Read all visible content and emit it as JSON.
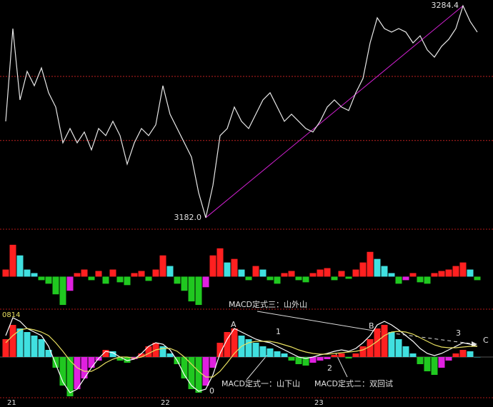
{
  "chart_data": [
    {
      "type": "line",
      "x": [
        0,
        1,
        2,
        3,
        4,
        5,
        6,
        7,
        8,
        9,
        10,
        11,
        12,
        13,
        14,
        15,
        16,
        17,
        18,
        19,
        20,
        21,
        22,
        23,
        24,
        25,
        26,
        27,
        28,
        29,
        30,
        31,
        32,
        33,
        34,
        35,
        36,
        37,
        38,
        39,
        40,
        41,
        42,
        43,
        44,
        45,
        46,
        47,
        48,
        49,
        50,
        51,
        52,
        53,
        54,
        55,
        56,
        57,
        58,
        59,
        60,
        61,
        62,
        63,
        64,
        65,
        66
      ],
      "xlim": [
        -0.8,
        68.2
      ],
      "ylim": [
        3176.8,
        3287.2
      ],
      "series": [
        {
          "color": "#e8e8e8",
          "values": [
            3228.6,
            3273.4,
            3238.9,
            3252.7,
            3245.8,
            3254.4,
            3242.4,
            3235.5,
            3218.2,
            3225.1,
            3218.2,
            3223.4,
            3214.8,
            3225.1,
            3221.7,
            3228.6,
            3221.7,
            3207.9,
            3218.2,
            3225.1,
            3221.7,
            3226.9,
            3245.8,
            3232.0,
            3225.1,
            3218.2,
            3211.3,
            3194.1,
            3182.0,
            3197.6,
            3221.7,
            3225.1,
            3235.5,
            3228.6,
            3225.1,
            3232.0,
            3238.9,
            3242.4,
            3235.5,
            3228.6,
            3232.0,
            3228.6,
            3225.1,
            3223.4,
            3228.6,
            3235.5,
            3238.9,
            3235.5,
            3233.8,
            3242.4,
            3249.3,
            3266.5,
            3278.6,
            3273.4,
            3271.7,
            3273.4,
            3271.7,
            3266.5,
            3269.9,
            3263.1,
            3259.6,
            3264.8,
            3268.2,
            3273.4,
            3284.4,
            3276.9,
            3271.7
          ]
        }
      ],
      "hlines": [
        3250.3,
        3219.3
      ],
      "hline_color": "#c02020",
      "trend_color": "#d020d0",
      "high": 3284.4,
      "low": {
        "value": 3182.0,
        "label": "3182.0"
      }
    },
    {
      "type": "bar",
      "x": [
        0,
        1,
        2,
        3,
        4,
        5,
        6,
        7,
        8,
        9,
        10,
        11,
        12,
        13,
        14,
        15,
        16,
        17,
        18,
        19,
        20,
        21,
        22,
        23,
        24,
        25,
        26,
        27,
        28,
        29,
        30,
        31,
        32,
        33,
        34,
        35,
        36,
        37,
        38,
        39,
        40,
        41,
        42,
        43,
        44,
        45,
        46,
        47,
        48,
        49,
        50,
        51,
        52,
        53,
        54,
        55,
        56,
        57,
        58,
        59,
        60,
        61,
        62,
        63,
        64,
        65,
        66
      ],
      "xlim": [
        -0.8,
        68.2
      ],
      "ylim": [
        -45,
        63
      ],
      "bar_colors": [
        "#ff2020",
        "#40e0e0",
        "#20c820",
        "#e020e0"
      ],
      "series": [
        {
          "values": [
            10,
            45,
            30,
            10,
            5,
            -5,
            -10,
            -25,
            -40,
            -20,
            5,
            10,
            -5,
            8,
            -10,
            10,
            -8,
            -12,
            5,
            8,
            -6,
            10,
            30,
            15,
            -10,
            -20,
            -35,
            -40,
            -15,
            30,
            40,
            20,
            25,
            10,
            -5,
            15,
            10,
            -5,
            -10,
            5,
            8,
            -5,
            -8,
            5,
            10,
            12,
            -5,
            8,
            -3,
            10,
            20,
            35,
            25,
            15,
            5,
            -10,
            -5,
            5,
            -8,
            -10,
            5,
            8,
            10,
            15,
            20,
            10,
            -5
          ]
        }
      ]
    },
    {
      "type": "macd",
      "label": "0814",
      "x": [
        0,
        1,
        2,
        3,
        4,
        5,
        6,
        7,
        8,
        9,
        10,
        11,
        12,
        13,
        14,
        15,
        16,
        17,
        18,
        19,
        20,
        21,
        22,
        23,
        24,
        25,
        26,
        27,
        28,
        29,
        30,
        31,
        32,
        33,
        34,
        35,
        36,
        37,
        38,
        39,
        40,
        41,
        42,
        43,
        44,
        45,
        46,
        47,
        48,
        49,
        50,
        51,
        52,
        53,
        54,
        55,
        56,
        57,
        58,
        59,
        60,
        61,
        62,
        63,
        64,
        65,
        66
      ],
      "xlim": [
        -0.8,
        68.2
      ],
      "xticks": [
        {
          "value": 0,
          "label": "21"
        },
        {
          "value": 21.5,
          "label": "22"
        },
        {
          "value": 43,
          "label": "23"
        }
      ],
      "ylim": [
        -55,
        65
      ],
      "bar_colors": [
        "#ff2020",
        "#40e0e0",
        "#20c820",
        "#e020e0"
      ],
      "series": [
        {
          "values": [
            25,
            45,
            40,
            35,
            30,
            25,
            10,
            -15,
            -40,
            -55,
            -45,
            -30,
            -15,
            -5,
            10,
            8,
            -5,
            -8,
            -3,
            5,
            15,
            20,
            15,
            5,
            -10,
            -30,
            -45,
            -50,
            -40,
            -15,
            20,
            35,
            40,
            30,
            25,
            20,
            15,
            12,
            8,
            5,
            -5,
            -10,
            -12,
            -8,
            -5,
            -3,
            3,
            5,
            -2,
            5,
            15,
            25,
            40,
            45,
            35,
            25,
            15,
            5,
            -10,
            -20,
            -25,
            -15,
            -5,
            5,
            10,
            8,
            0
          ]
        },
        {
          "color": "#ffffff",
          "values": [
            30,
            55,
            50,
            40,
            35,
            30,
            15,
            -10,
            -35,
            -50,
            -45,
            -30,
            -15,
            -2,
            8,
            6,
            0,
            -5,
            -3,
            5,
            15,
            20,
            18,
            10,
            -5,
            -25,
            -40,
            -48,
            -45,
            -25,
            5,
            25,
            40,
            35,
            30,
            25,
            22,
            20,
            15,
            10,
            5,
            0,
            -2,
            0,
            3,
            5,
            8,
            10,
            8,
            12,
            20,
            30,
            45,
            50,
            45,
            38,
            30,
            22,
            12,
            5,
            2,
            5,
            10,
            15,
            20,
            18,
            15
          ]
        },
        {
          "color": "#e8e060",
          "values": [
            20,
            30,
            38,
            40,
            38,
            35,
            30,
            20,
            8,
            -5,
            -15,
            -20,
            -20,
            -15,
            -8,
            -3,
            0,
            0,
            -2,
            0,
            5,
            10,
            12,
            12,
            8,
            0,
            -10,
            -20,
            -28,
            -28,
            -20,
            -8,
            5,
            15,
            20,
            22,
            22,
            22,
            20,
            17,
            14,
            10,
            7,
            5,
            4,
            4,
            5,
            6,
            7,
            8,
            10,
            15,
            22,
            30,
            35,
            36,
            35,
            32,
            27,
            22,
            17,
            14,
            13,
            13,
            14,
            15,
            15
          ]
        }
      ],
      "annotations": [
        "MACD定式三：山外山",
        "MACD定式一：山下山",
        "MACD定式二：双回试",
        "A",
        "B",
        "C",
        "0",
        "1",
        "2",
        "3"
      ]
    }
  ]
}
